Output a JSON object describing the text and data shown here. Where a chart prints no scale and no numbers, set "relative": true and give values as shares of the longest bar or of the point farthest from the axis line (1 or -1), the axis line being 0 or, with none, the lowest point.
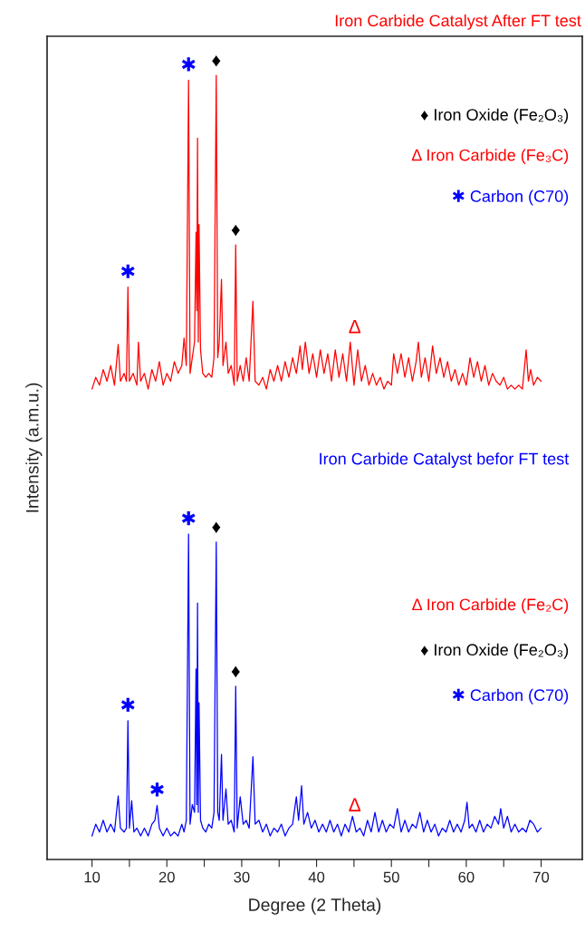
{
  "chart_data": {
    "type": "line",
    "relative": true,
    "xlabel": "Degree (2 Theta)",
    "ylabel": "Intensity (a.m.u.)",
    "xlim": [
      4,
      75.5
    ],
    "xticks": [
      10,
      {
        "value": 15,
        "label": null
      },
      20,
      {
        "value": 25,
        "label": null
      },
      30,
      {
        "value": 35,
        "label": null
      },
      40,
      {
        "value": 45,
        "label": null
      },
      50,
      {
        "value": 55,
        "label": null
      },
      60,
      {
        "value": 65,
        "label": null
      },
      70
    ],
    "grid": false,
    "marker": "none",
    "line_style": "solid",
    "series": [
      {
        "color": "#ff0000",
        "x": [
          10,
          10.5,
          11,
          11.5,
          12,
          12.5,
          13,
          13.5,
          13.8,
          14.3,
          14.6,
          14.8,
          15.0,
          15.5,
          16,
          16.2,
          16.5,
          17,
          17.5,
          18,
          18.5,
          19,
          19.5,
          20,
          20.5,
          21,
          21.5,
          22,
          22.3,
          22.6,
          22.9,
          23.1,
          23.4,
          23.7,
          23.9,
          24.0,
          24.1,
          24.2,
          24.3,
          24.5,
          24.8,
          25.2,
          25.6,
          26,
          26.3,
          26.6,
          26.8,
          27.0,
          27.3,
          27.5,
          27.9,
          28.2,
          28.6,
          29.0,
          29.2,
          29.4,
          29.8,
          30.2,
          30.6,
          31,
          31.5,
          31.8,
          32.3,
          32.8,
          33.3,
          33.8,
          34.3,
          34.8,
          35.3,
          35.8,
          36.3,
          36.8,
          37.3,
          37.8,
          38.1,
          38.5,
          39,
          39.5,
          40,
          40.5,
          41,
          41.5,
          42,
          42.5,
          43,
          43.5,
          44,
          44.5,
          45,
          45.5,
          46,
          46.5,
          47,
          47.5,
          48,
          48.5,
          49,
          49.5,
          50,
          50.3,
          50.8,
          51.3,
          51.8,
          52.3,
          52.8,
          53.3,
          53.6,
          54,
          54.5,
          55,
          55.5,
          56,
          56.5,
          57,
          57.5,
          58,
          58.5,
          59,
          59.5,
          60,
          60.5,
          61,
          61.5,
          62,
          62.5,
          63,
          63.5,
          64,
          64.5,
          65,
          65.5,
          66,
          66.5,
          67,
          67.5,
          68,
          68.3,
          68.6,
          69,
          69.5,
          70
        ],
        "values": [
          0.6,
          0.615,
          0.605,
          0.625,
          0.61,
          0.63,
          0.605,
          0.657,
          0.61,
          0.62,
          0.61,
          0.73,
          0.61,
          0.62,
          0.605,
          0.66,
          0.61,
          0.62,
          0.6,
          0.625,
          0.61,
          0.635,
          0.605,
          0.62,
          0.61,
          0.635,
          0.62,
          0.63,
          0.665,
          0.63,
          0.994,
          0.62,
          0.64,
          0.66,
          0.8,
          0.7,
          0.92,
          0.66,
          0.81,
          0.65,
          0.62,
          0.615,
          0.62,
          0.615,
          0.64,
          1.0,
          0.64,
          0.66,
          0.74,
          0.63,
          0.66,
          0.62,
          0.63,
          0.605,
          0.784,
          0.61,
          0.63,
          0.61,
          0.64,
          0.61,
          0.712,
          0.61,
          0.605,
          0.615,
          0.6,
          0.625,
          0.61,
          0.63,
          0.61,
          0.635,
          0.615,
          0.64,
          0.62,
          0.655,
          0.625,
          0.66,
          0.62,
          0.645,
          0.615,
          0.65,
          0.62,
          0.645,
          0.61,
          0.65,
          0.615,
          0.645,
          0.61,
          0.66,
          0.605,
          0.65,
          0.61,
          0.63,
          0.605,
          0.62,
          0.605,
          0.615,
          0.6,
          0.61,
          0.605,
          0.645,
          0.62,
          0.645,
          0.615,
          0.64,
          0.61,
          0.635,
          0.66,
          0.615,
          0.64,
          0.61,
          0.655,
          0.62,
          0.64,
          0.615,
          0.635,
          0.61,
          0.625,
          0.605,
          0.62,
          0.605,
          0.64,
          0.615,
          0.635,
          0.61,
          0.63,
          0.605,
          0.62,
          0.61,
          0.605,
          0.615,
          0.6,
          0.605,
          0.6,
          0.605,
          0.6,
          0.65,
          0.61,
          0.625,
          0.605,
          0.615,
          0.61
        ]
      },
      {
        "color": "#0000ff",
        "x": [
          10,
          10.5,
          11,
          11.5,
          12,
          12.5,
          13,
          13.5,
          13.8,
          14.3,
          14.6,
          14.8,
          15.0,
          15.3,
          15.6,
          16,
          16.5,
          17,
          17.5,
          18,
          18.4,
          18.7,
          19,
          19.5,
          20,
          20.5,
          21,
          21.5,
          22,
          22.3,
          22.6,
          22.9,
          23.1,
          23.4,
          23.7,
          23.9,
          24.0,
          24.1,
          24.2,
          24.3,
          24.5,
          24.8,
          25.2,
          25.6,
          26,
          26.3,
          26.6,
          26.8,
          27.0,
          27.3,
          27.5,
          27.9,
          28.2,
          28.6,
          29.0,
          29.2,
          29.4,
          29.8,
          30.2,
          30.6,
          31,
          31.5,
          31.8,
          32.3,
          32.8,
          33.3,
          33.8,
          34.3,
          34.8,
          35.3,
          35.8,
          36.3,
          36.8,
          37.3,
          37.6,
          38,
          38.3,
          38.8,
          39.3,
          39.8,
          40.3,
          40.8,
          41.3,
          41.8,
          42.3,
          42.8,
          43.3,
          43.8,
          44.3,
          44.8,
          45.3,
          45.8,
          46.3,
          46.8,
          47.3,
          47.8,
          48.3,
          48.8,
          49.3,
          49.8,
          50.3,
          50.8,
          51.3,
          51.8,
          52.3,
          52.8,
          53.3,
          53.8,
          54.3,
          54.8,
          55.3,
          55.8,
          56.3,
          56.8,
          57.3,
          57.8,
          58.3,
          58.8,
          59.3,
          59.8,
          60.1,
          60.4,
          60.8,
          61.3,
          61.8,
          62.3,
          62.8,
          63.3,
          63.8,
          64.3,
          64.6,
          65,
          65.5,
          66,
          66.5,
          67,
          67.5,
          68,
          68.5,
          69,
          69.5,
          70
        ],
        "values": [
          0.03,
          0.045,
          0.035,
          0.05,
          0.035,
          0.045,
          0.035,
          0.081,
          0.04,
          0.035,
          0.04,
          0.177,
          0.04,
          0.075,
          0.035,
          0.04,
          0.03,
          0.04,
          0.03,
          0.045,
          0.05,
          0.069,
          0.04,
          0.03,
          0.04,
          0.03,
          0.035,
          0.03,
          0.045,
          0.035,
          0.05,
          0.415,
          0.045,
          0.07,
          0.06,
          0.243,
          0.07,
          0.327,
          0.06,
          0.2,
          0.05,
          0.04,
          0.035,
          0.045,
          0.04,
          0.06,
          0.405,
          0.06,
          0.05,
          0.134,
          0.05,
          0.09,
          0.045,
          0.05,
          0.035,
          0.221,
          0.04,
          0.08,
          0.045,
          0.05,
          0.04,
          0.131,
          0.045,
          0.05,
          0.035,
          0.045,
          0.03,
          0.04,
          0.035,
          0.045,
          0.03,
          0.04,
          0.045,
          0.08,
          0.05,
          0.094,
          0.045,
          0.06,
          0.04,
          0.05,
          0.035,
          0.045,
          0.035,
          0.05,
          0.035,
          0.045,
          0.03,
          0.045,
          0.035,
          0.055,
          0.035,
          0.04,
          0.03,
          0.05,
          0.035,
          0.06,
          0.035,
          0.05,
          0.035,
          0.045,
          0.04,
          0.065,
          0.035,
          0.05,
          0.035,
          0.045,
          0.04,
          0.06,
          0.035,
          0.05,
          0.035,
          0.045,
          0.03,
          0.04,
          0.035,
          0.05,
          0.035,
          0.045,
          0.035,
          0.05,
          0.073,
          0.04,
          0.045,
          0.035,
          0.05,
          0.035,
          0.045,
          0.04,
          0.055,
          0.045,
          0.065,
          0.04,
          0.055,
          0.035,
          0.045,
          0.035,
          0.04,
          0.035,
          0.05,
          0.045,
          0.035,
          0.04
        ]
      }
    ],
    "annotations": [
      "Iron Carbide Catalyst After FT test",
      "♦ Iron Oxide (Fe₂O₃)",
      "Δ Iron Carbide (Fe₃C)",
      "✱ Carbon (C70)",
      "Iron Carbide Catalyst befor FT test",
      "Δ Iron Carbide (Fe₂C)",
      "♦ Iron Oxide (Fe₂O₃)",
      "✱ Carbon (C70)",
      {
        "text": "✱",
        "x": 22.9,
        "y": 0.994
      },
      {
        "text": "♦",
        "x": 26.6,
        "y": 1.0
      },
      {
        "text": "♦",
        "x": 29.2,
        "y": 0.784
      },
      {
        "text": "✱",
        "x": 14.8,
        "y": 0.73
      },
      {
        "text": "Δ",
        "x": 45.1,
        "y": 0.66
      },
      {
        "text": "✱",
        "x": 22.9,
        "y": 0.415
      },
      {
        "text": "♦",
        "x": 26.6,
        "y": 0.405
      },
      {
        "text": "♦",
        "x": 29.2,
        "y": 0.221
      },
      {
        "text": "✱",
        "x": 14.8,
        "y": 0.177
      },
      {
        "text": "✱",
        "x": 18.7,
        "y": 0.069
      },
      {
        "text": "Δ",
        "x": 45.1,
        "y": 0.05
      }
    ]
  }
}
